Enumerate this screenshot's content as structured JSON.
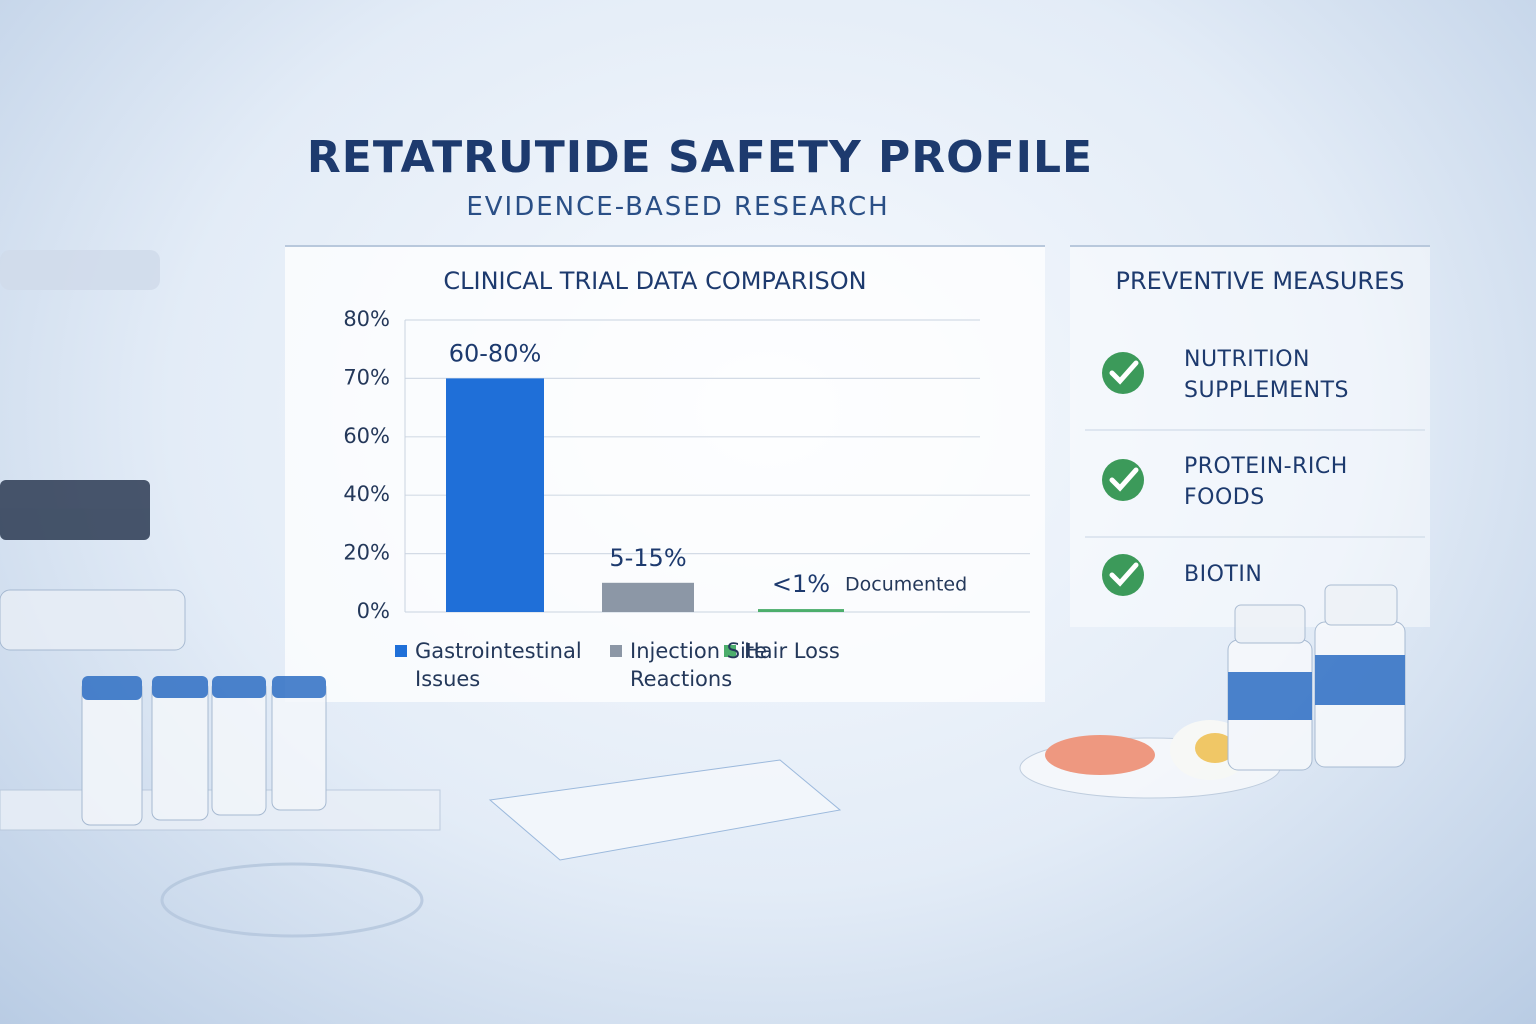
{
  "header": {
    "title": "RETATRUTIDE SAFETY PROFILE",
    "subtitle": "EVIDENCE-BASED RESEARCH"
  },
  "chart_data": {
    "type": "bar",
    "title": "CLINICAL TRIAL DATA COMPARISON",
    "categories": [
      "Gastrointestinal Issues",
      "Injection Site Reactions",
      "Hair Loss"
    ],
    "values": [
      70,
      10,
      1
    ],
    "value_labels": [
      "60-80%",
      "5-15%",
      "<1%"
    ],
    "colors": [
      "#1f6fd8",
      "#8c97a6",
      "#4cae6c"
    ],
    "annotation": "Documented",
    "ylim": [
      0,
      80
    ],
    "yticks": [
      {
        "value": 0,
        "label": "0%"
      },
      {
        "value": 20,
        "label": "20%"
      },
      {
        "value": 40,
        "label": "40%"
      },
      {
        "value": 60,
        "label": "60%"
      },
      {
        "value": 70,
        "label": "70%"
      },
      {
        "value": 80,
        "label": "80%"
      }
    ],
    "grid": true,
    "legend": "bottom"
  },
  "preventive_measures": {
    "title": "PREVENTIVE MEASURES",
    "items": [
      "NUTRITION SUPPLEMENTS",
      "PROTEIN-RICH FOODS",
      "BIOTIN"
    ]
  }
}
